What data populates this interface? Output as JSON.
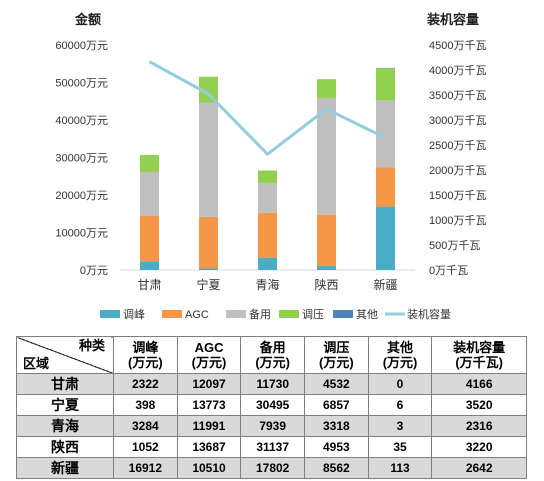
{
  "chart_data": {
    "type": "bar",
    "stacked": true,
    "secondary_line": true,
    "left_axis_title": "金额",
    "right_axis_title": "装机容量",
    "categories": [
      "甘肃",
      "宁夏",
      "青海",
      "陕西",
      "新疆"
    ],
    "series": [
      {
        "name": "调峰",
        "color": "#4bacc6",
        "axis": "left",
        "values": [
          2322,
          398,
          3284,
          1052,
          16912
        ]
      },
      {
        "name": "AGC",
        "color": "#f79646",
        "axis": "left",
        "values": [
          12097,
          13773,
          11991,
          13687,
          10510
        ]
      },
      {
        "name": "备用",
        "color": "#bfbfbf",
        "axis": "left",
        "values": [
          11730,
          30495,
          7939,
          31137,
          17802
        ]
      },
      {
        "name": "调压",
        "color": "#92d050",
        "axis": "left",
        "values": [
          4532,
          6857,
          3318,
          4953,
          8562
        ]
      },
      {
        "name": "其他",
        "color": "#4f81bd",
        "axis": "left",
        "values": [
          0,
          6,
          3,
          35,
          113
        ]
      },
      {
        "name": "装机容量",
        "color": "#93cddd",
        "axis": "right",
        "type": "line",
        "values": [
          4166,
          3520,
          2316,
          3220,
          2642
        ]
      }
    ],
    "left_ylim": [
      0,
      60000
    ],
    "left_ticks": [
      "0万元",
      "10000万元",
      "20000万元",
      "30000万元",
      "40000万元",
      "50000万元",
      "60000万元"
    ],
    "right_ylim": [
      0,
      4500
    ],
    "right_ticks": [
      "0万千瓦",
      "500万千瓦",
      "1000万千瓦",
      "1500万千瓦",
      "2000万千瓦",
      "2500万千瓦",
      "3000万千瓦",
      "3500万千瓦",
      "4000万千瓦",
      "4500万千瓦"
    ],
    "grid": false,
    "legend_position": "bottom"
  },
  "table": {
    "corner_top": "种类",
    "corner_bottom": "区域",
    "headers": [
      {
        "line1": "调峰",
        "line2": "(万元)"
      },
      {
        "line1": "AGC",
        "line2": "(万元)"
      },
      {
        "line1": "备用",
        "line2": "(万元)"
      },
      {
        "line1": "调压",
        "line2": "(万元)"
      },
      {
        "line1": "其他",
        "line2": "(万元)"
      },
      {
        "line1": "装机容量",
        "line2": "(万千瓦)"
      }
    ],
    "rows": [
      {
        "region": "甘肃",
        "cells": [
          "2322",
          "12097",
          "11730",
          "4532",
          "0",
          "4166"
        ]
      },
      {
        "region": "宁夏",
        "cells": [
          "398",
          "13773",
          "30495",
          "6857",
          "6",
          "3520"
        ]
      },
      {
        "region": "青海",
        "cells": [
          "3284",
          "11991",
          "7939",
          "3318",
          "3",
          "2316"
        ]
      },
      {
        "region": "陕西",
        "cells": [
          "1052",
          "13687",
          "31137",
          "4953",
          "35",
          "3220"
        ]
      },
      {
        "region": "新疆",
        "cells": [
          "16912",
          "10510",
          "17802",
          "8562",
          "113",
          "2642"
        ]
      }
    ]
  }
}
